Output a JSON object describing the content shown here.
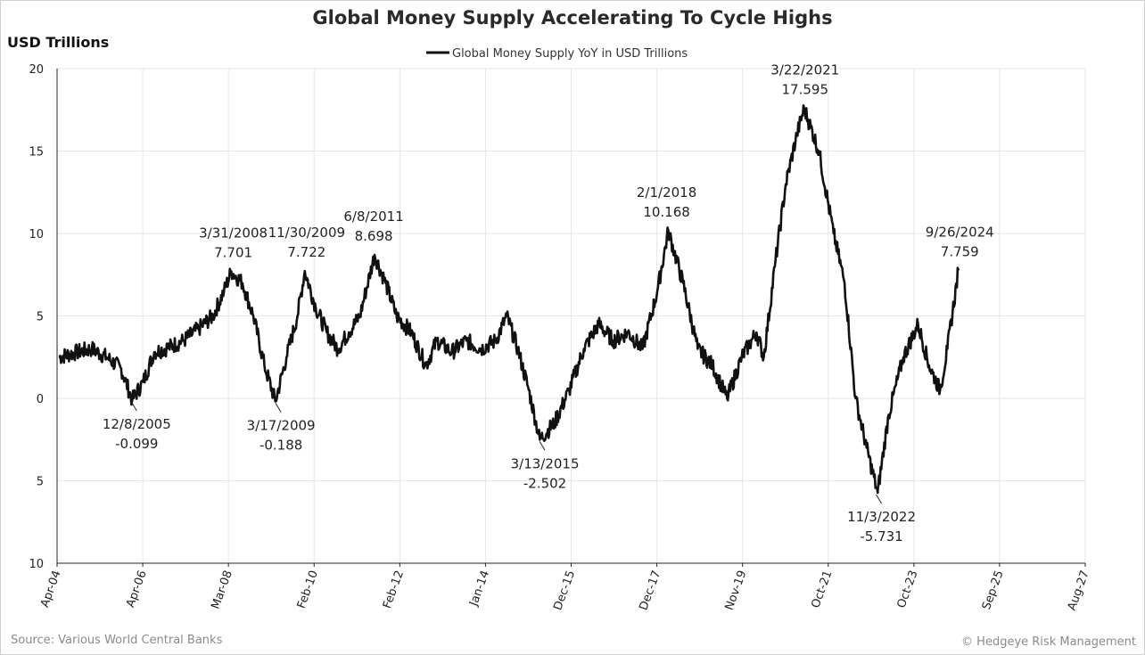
{
  "chart_data": {
    "type": "line",
    "title": "Global Money Supply Accelerating To Cycle Highs",
    "ylabel": "USD Trillions",
    "legend": "Global Money Supply YoY in USD Trillions",
    "legend_position": "top-center",
    "grid": true,
    "source": "Source: Various World Central Banks",
    "credit": "© Hedgeye Risk Management",
    "ylim": [
      -10,
      20
    ],
    "y_ticks": [
      {
        "value": 20,
        "label": "20",
        "color": "#222222"
      },
      {
        "value": 15,
        "label": "15",
        "color": "#222222"
      },
      {
        "value": 10,
        "label": "10",
        "color": "#222222"
      },
      {
        "value": 5,
        "label": "5",
        "color": "#222222"
      },
      {
        "value": 0,
        "label": "0",
        "color": "#222222"
      },
      {
        "value": -5,
        "label": "5",
        "color": "#cc2222"
      },
      {
        "value": -10,
        "label": "10",
        "color": "#cc2222"
      }
    ],
    "x_ticks": [
      "Apr-04",
      "Apr-06",
      "Mar-08",
      "Feb-10",
      "Feb-12",
      "Jan-14",
      "Dec-15",
      "Dec-17",
      "Nov-19",
      "Oct-21",
      "Oct-23",
      "Sep-25",
      "Aug-27"
    ],
    "series": [
      {
        "name": "Global Money Supply YoY in USD Trillions",
        "color": "#111111",
        "points": [
          [
            "2004-04",
            2.5
          ],
          [
            "2004-09",
            2.8
          ],
          [
            "2005-01",
            3.0
          ],
          [
            "2005-05",
            2.5
          ],
          [
            "2005-09",
            1.8
          ],
          [
            "2005-12",
            -0.099
          ],
          [
            "2006-03",
            1.0
          ],
          [
            "2006-06",
            2.8
          ],
          [
            "2006-10",
            3.1
          ],
          [
            "2007-02",
            3.5
          ],
          [
            "2007-06",
            4.2
          ],
          [
            "2007-10",
            5.0
          ],
          [
            "2008-01",
            6.5
          ],
          [
            "2008-03",
            7.701
          ],
          [
            "2008-06",
            7.0
          ],
          [
            "2008-09",
            5.0
          ],
          [
            "2008-12",
            2.0
          ],
          [
            "2009-03",
            -0.188
          ],
          [
            "2009-06",
            2.5
          ],
          [
            "2009-09",
            5.0
          ],
          [
            "2009-11",
            7.722
          ],
          [
            "2010-02",
            5.5
          ],
          [
            "2010-05",
            4.0
          ],
          [
            "2010-08",
            3.0
          ],
          [
            "2010-11",
            4.0
          ],
          [
            "2011-02",
            5.0
          ],
          [
            "2011-06",
            8.698
          ],
          [
            "2011-09",
            7.0
          ],
          [
            "2011-12",
            5.0
          ],
          [
            "2012-04",
            4.0
          ],
          [
            "2012-08",
            2.0
          ],
          [
            "2012-11",
            3.5
          ],
          [
            "2013-03",
            2.8
          ],
          [
            "2013-07",
            3.5
          ],
          [
            "2013-11",
            3.0
          ],
          [
            "2014-03",
            3.5
          ],
          [
            "2014-06",
            5.0
          ],
          [
            "2014-09",
            3.0
          ],
          [
            "2014-12",
            0.5
          ],
          [
            "2015-03",
            -2.502
          ],
          [
            "2015-07",
            -1.5
          ],
          [
            "2015-11",
            0.5
          ],
          [
            "2016-03",
            3.0
          ],
          [
            "2016-07",
            4.5
          ],
          [
            "2016-11",
            3.5
          ],
          [
            "2017-03",
            4.0
          ],
          [
            "2017-07",
            3.0
          ],
          [
            "2017-11",
            6.5
          ],
          [
            "2018-02",
            10.168
          ],
          [
            "2018-06",
            7.0
          ],
          [
            "2018-10",
            3.0
          ],
          [
            "2019-02",
            2.0
          ],
          [
            "2019-06",
            0.0
          ],
          [
            "2019-10",
            2.5
          ],
          [
            "2020-02",
            4.0
          ],
          [
            "2020-04",
            2.5
          ],
          [
            "2020-07",
            8.0
          ],
          [
            "2020-10",
            13.0
          ],
          [
            "2021-01",
            16.0
          ],
          [
            "2021-03",
            17.595
          ],
          [
            "2021-07",
            15.0
          ],
          [
            "2021-11",
            10.0
          ],
          [
            "2022-02",
            7.0
          ],
          [
            "2022-05",
            0.0
          ],
          [
            "2022-08",
            -3.0
          ],
          [
            "2022-11",
            -5.731
          ],
          [
            "2023-02",
            -1.0
          ],
          [
            "2023-06",
            2.5
          ],
          [
            "2023-10",
            4.5
          ],
          [
            "2024-01",
            2.0
          ],
          [
            "2024-04",
            0.5
          ],
          [
            "2024-06",
            3.0
          ],
          [
            "2024-09",
            7.759
          ]
        ]
      }
    ],
    "annotations": [
      {
        "date": "2005-12-08",
        "value": -0.099,
        "label_date": "12/8/2005",
        "label_value": "-0.099",
        "position": "below"
      },
      {
        "date": "2008-03-31",
        "value": 7.701,
        "label_date": "3/31/2008",
        "label_value": "7.701",
        "position": "above"
      },
      {
        "date": "2009-03-17",
        "value": -0.188,
        "label_date": "3/17/2009",
        "label_value": "-0.188",
        "position": "below"
      },
      {
        "date": "2009-11-30",
        "value": 7.722,
        "label_date": "11/30/2009",
        "label_value": "7.722",
        "position": "above"
      },
      {
        "date": "2011-06-08",
        "value": 8.698,
        "label_date": "6/8/2011",
        "label_value": "8.698",
        "position": "above"
      },
      {
        "date": "2015-03-13",
        "value": -2.502,
        "label_date": "3/13/2015",
        "label_value": "-2.502",
        "position": "below"
      },
      {
        "date": "2018-02-01",
        "value": 10.168,
        "label_date": "2/1/2018",
        "label_value": "10.168",
        "position": "above"
      },
      {
        "date": "2021-03-22",
        "value": 17.595,
        "label_date": "3/22/2021",
        "label_value": "17.595",
        "position": "above"
      },
      {
        "date": "2022-11-03",
        "value": -5.731,
        "label_date": "11/3/2022",
        "label_value": "-5.731",
        "position": "below"
      },
      {
        "date": "2024-09-26",
        "value": 7.759,
        "label_date": "9/26/2024",
        "label_value": "7.759",
        "position": "above"
      }
    ]
  }
}
